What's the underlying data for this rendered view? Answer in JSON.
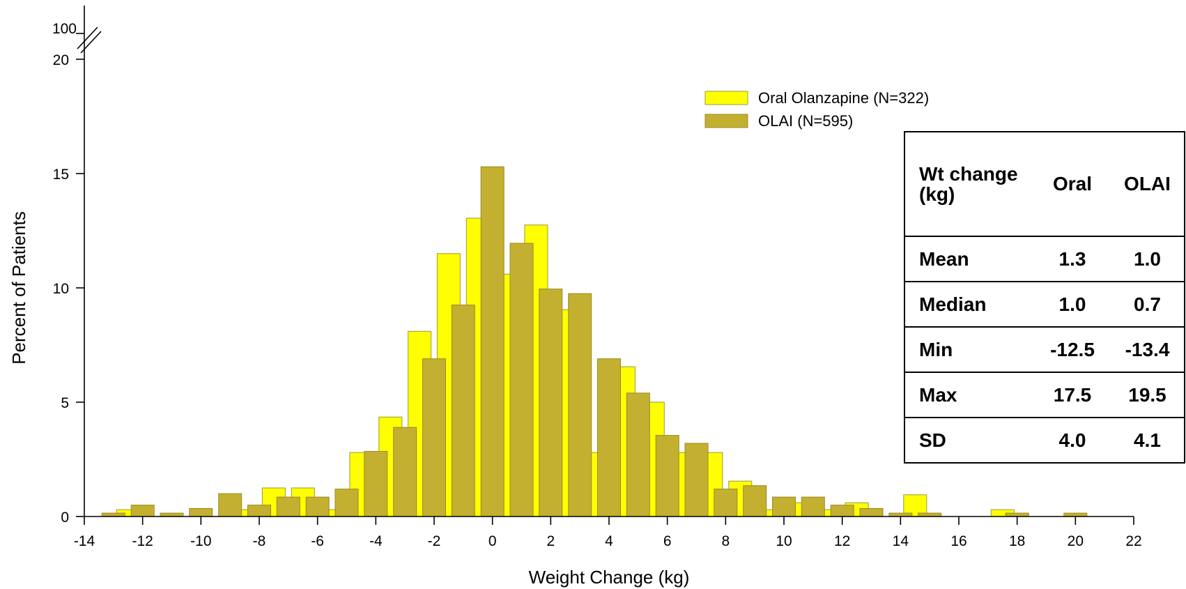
{
  "chart_data": {
    "type": "bar",
    "title": "",
    "xlabel": "Weight Change (kg)",
    "ylabel": "Percent of Patients",
    "xlim": [
      -14,
      22
    ],
    "ylim": [
      0,
      20
    ],
    "y_axis_break": {
      "top_label": "100"
    },
    "xticks": [
      "-14",
      "-12",
      "-10",
      "-8",
      "-6",
      "-4",
      "-2",
      "0",
      "2",
      "4",
      "6",
      "8",
      "10",
      "12",
      "14",
      "16",
      "18",
      "20",
      "22"
    ],
    "yticks": [
      "0",
      "5",
      "10",
      "15",
      "20"
    ],
    "legend_position": "top-right",
    "series": [
      {
        "name": "Oral Olanzapine (N=322)",
        "color": "#ffff00",
        "x": [
          -12.5,
          -8.5,
          -7.5,
          -6.5,
          -5.5,
          -4.5,
          -3.5,
          -2.5,
          -1.5,
          -0.5,
          0.5,
          1.5,
          2.5,
          3.5,
          4.5,
          5.5,
          6.5,
          7.5,
          8.5,
          9.5,
          10.5,
          11.5,
          12.5,
          14.5,
          17.5
        ],
        "values": [
          0.3,
          0.3,
          1.25,
          1.25,
          0.3,
          2.8,
          4.35,
          8.1,
          11.5,
          13.05,
          10.6,
          12.75,
          9.05,
          2.8,
          6.55,
          5.0,
          2.8,
          2.8,
          1.55,
          0.3,
          0.6,
          0.3,
          0.6,
          0.95,
          0.3
        ]
      },
      {
        "name": "OLAI (N=595)",
        "color": "#c4b030",
        "x": [
          -13.0,
          -12.0,
          -11.0,
          -10.0,
          -9.0,
          -8.0,
          -7.0,
          -6.0,
          -5.0,
          -4.0,
          -3.0,
          -2.0,
          -1.0,
          0.0,
          1.0,
          2.0,
          3.0,
          4.0,
          5.0,
          6.0,
          7.0,
          8.0,
          9.0,
          10.0,
          11.0,
          12.0,
          13.0,
          14.0,
          15.0,
          18.0,
          20.0
        ],
        "values": [
          0.15,
          0.5,
          0.15,
          0.35,
          1.0,
          0.5,
          0.85,
          0.85,
          1.2,
          2.85,
          3.9,
          6.9,
          9.25,
          15.3,
          11.95,
          9.95,
          9.75,
          6.9,
          5.4,
          3.55,
          3.2,
          1.2,
          1.35,
          0.85,
          0.85,
          0.5,
          0.35,
          0.15,
          0.15,
          0.15,
          0.15
        ]
      }
    ],
    "table": {
      "header": [
        "Wt change (kg)",
        "Oral",
        "OLAI"
      ],
      "rows": [
        [
          "Mean",
          "1.3",
          "1.0"
        ],
        [
          "Median",
          "1.0",
          "0.7"
        ],
        [
          "Min",
          "-12.5",
          "-13.4"
        ],
        [
          "Max",
          "17.5",
          "19.5"
        ],
        [
          "SD",
          "4.0",
          "4.1"
        ]
      ]
    }
  }
}
